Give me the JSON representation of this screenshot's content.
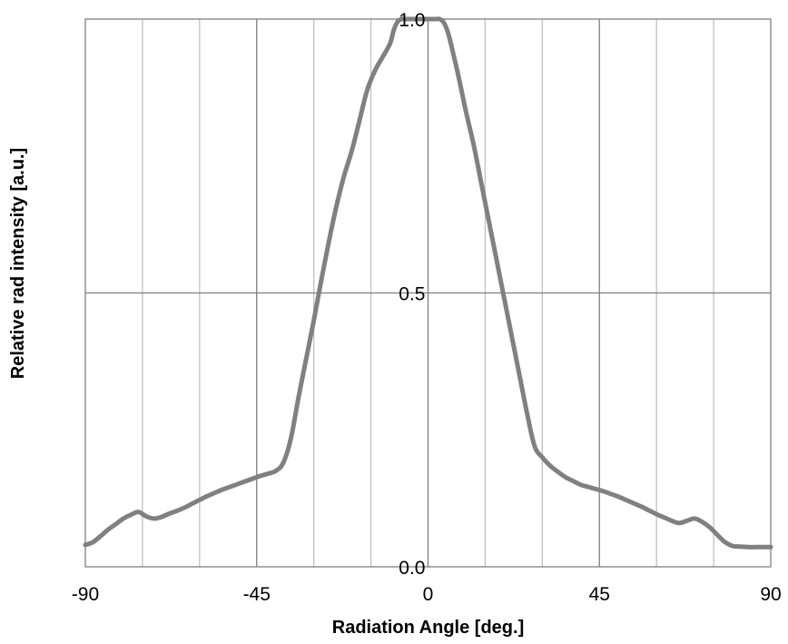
{
  "chart_data": {
    "type": "line",
    "title": "",
    "xlabel": "Radiation Angle [deg.]",
    "ylabel": "Relative rad intensity [a.u.]",
    "xlim": [
      -90,
      90
    ],
    "ylim": [
      0.0,
      1.0
    ],
    "x_ticks": [
      -90,
      -45,
      0,
      45,
      90
    ],
    "x_tick_labels": [
      "-90",
      "-45",
      "0",
      "45",
      "90"
    ],
    "y_ticks": [
      0.0,
      0.5,
      1.0
    ],
    "y_tick_labels": [
      "0.0",
      "0.5",
      "1.0"
    ],
    "minor_x_gridlines": [
      -75,
      -60,
      -30,
      -15,
      15,
      30,
      60,
      75
    ],
    "grid": true,
    "legend": "none",
    "colors": {
      "line": "#808080",
      "major_grid": "#7f7f7f",
      "minor_grid": "#c0c0c0",
      "frame": "#7f7f7f"
    },
    "series": [
      {
        "x": [
          -90,
          -88,
          -86,
          -84,
          -82,
          -80,
          -78,
          -76,
          -74,
          -72,
          -70,
          -68,
          -66,
          -64,
          -62,
          -60,
          -58,
          -56,
          -54,
          -52,
          -50,
          -48,
          -46,
          -44,
          -42,
          -40,
          -38,
          -36,
          -34,
          -32,
          -30,
          -28,
          -26,
          -24,
          -22,
          -20,
          -18,
          -16,
          -14,
          -12,
          -10,
          -9,
          -8,
          -7,
          -6,
          -5,
          -4,
          -3,
          -2,
          -1,
          0,
          1,
          2,
          3,
          4,
          5,
          6,
          8,
          10,
          12,
          14,
          16,
          18,
          20,
          22,
          24,
          26,
          28,
          30,
          32,
          34,
          36,
          38,
          40,
          42,
          44,
          46,
          48,
          50,
          52,
          54,
          56,
          58,
          60,
          62,
          64,
          66,
          68,
          70,
          72,
          74,
          76,
          78,
          80,
          82,
          84,
          86,
          88,
          90
        ],
        "y": [
          0.04,
          0.045,
          0.056,
          0.068,
          0.078,
          0.088,
          0.095,
          0.1,
          0.092,
          0.088,
          0.091,
          0.097,
          0.102,
          0.108,
          0.115,
          0.122,
          0.129,
          0.135,
          0.141,
          0.146,
          0.151,
          0.156,
          0.161,
          0.166,
          0.17,
          0.175,
          0.19,
          0.235,
          0.31,
          0.38,
          0.45,
          0.525,
          0.595,
          0.66,
          0.715,
          0.76,
          0.815,
          0.87,
          0.905,
          0.93,
          0.955,
          0.98,
          0.995,
          1.0,
          1.0,
          1.0,
          1.0,
          1.0,
          1.0,
          1.0,
          1.0,
          1.0,
          1.0,
          1.0,
          0.995,
          0.98,
          0.955,
          0.895,
          0.83,
          0.77,
          0.7,
          0.63,
          0.56,
          0.49,
          0.42,
          0.35,
          0.28,
          0.22,
          0.2,
          0.185,
          0.174,
          0.164,
          0.157,
          0.15,
          0.146,
          0.142,
          0.138,
          0.133,
          0.128,
          0.122,
          0.116,
          0.11,
          0.103,
          0.096,
          0.09,
          0.084,
          0.08,
          0.084,
          0.088,
          0.082,
          0.072,
          0.058,
          0.045,
          0.038,
          0.037,
          0.036,
          0.036,
          0.036,
          0.036
        ]
      }
    ]
  }
}
